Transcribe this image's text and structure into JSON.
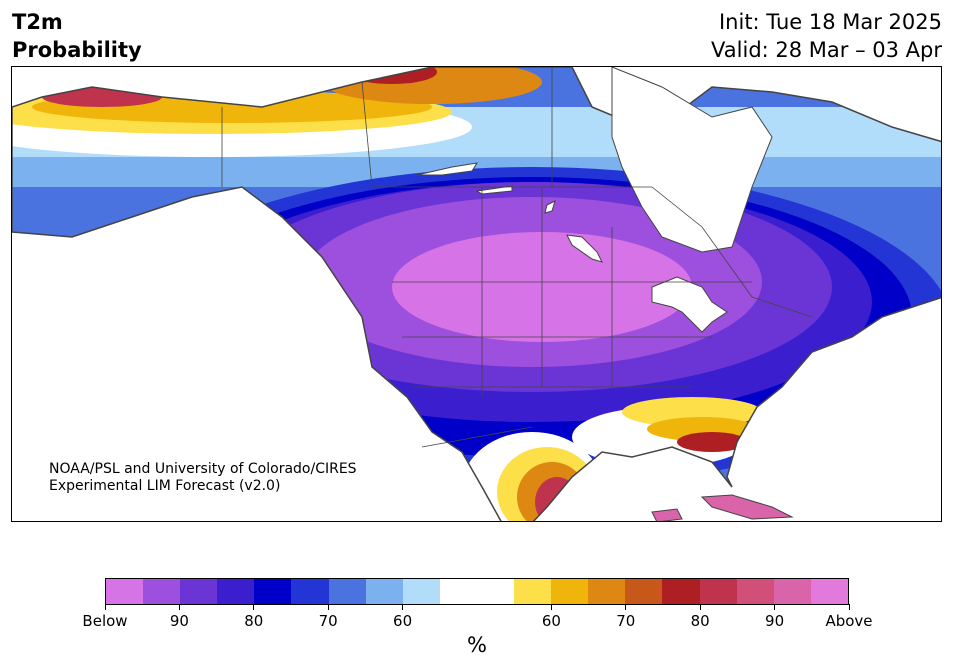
{
  "header": {
    "variable": "T2m",
    "product": "Probability",
    "init": "Init: Tue 18 Mar 2025",
    "valid": "Valid: 28 Mar – 03 Apr"
  },
  "credit": {
    "line1": "NOAA/PSL and University of Colorado/CIRES",
    "line2": "Experimental LIM Forecast (v2.0)"
  },
  "colorbar": {
    "unit": "%",
    "colors": [
      "#d673e6",
      "#9d4fdd",
      "#6b35d6",
      "#3b1fcf",
      "#0000c8",
      "#2435d6",
      "#4a73e0",
      "#7ab1ee",
      "#b1dcfa",
      "#ffffff",
      "#ffffff",
      "#fddf4a",
      "#f0b50a",
      "#dc8812",
      "#c8571a",
      "#ad1f22",
      "#c0334d",
      "#d0507a",
      "#d964aa",
      "#e279dc"
    ],
    "labels": [
      "Below",
      "90",
      "80",
      "70",
      "60",
      "60",
      "70",
      "80",
      "90",
      "Above"
    ]
  },
  "map": {
    "region": "North America",
    "palette": {
      "below_high": "#d673e6",
      "below_mid": "#6b35d6",
      "below_low": "#0000c8",
      "near": "#ffffff",
      "above_low": "#fddf4a",
      "above_mid": "#dc8812",
      "above_high": "#ad1f22",
      "above_top": "#d0507a"
    }
  }
}
